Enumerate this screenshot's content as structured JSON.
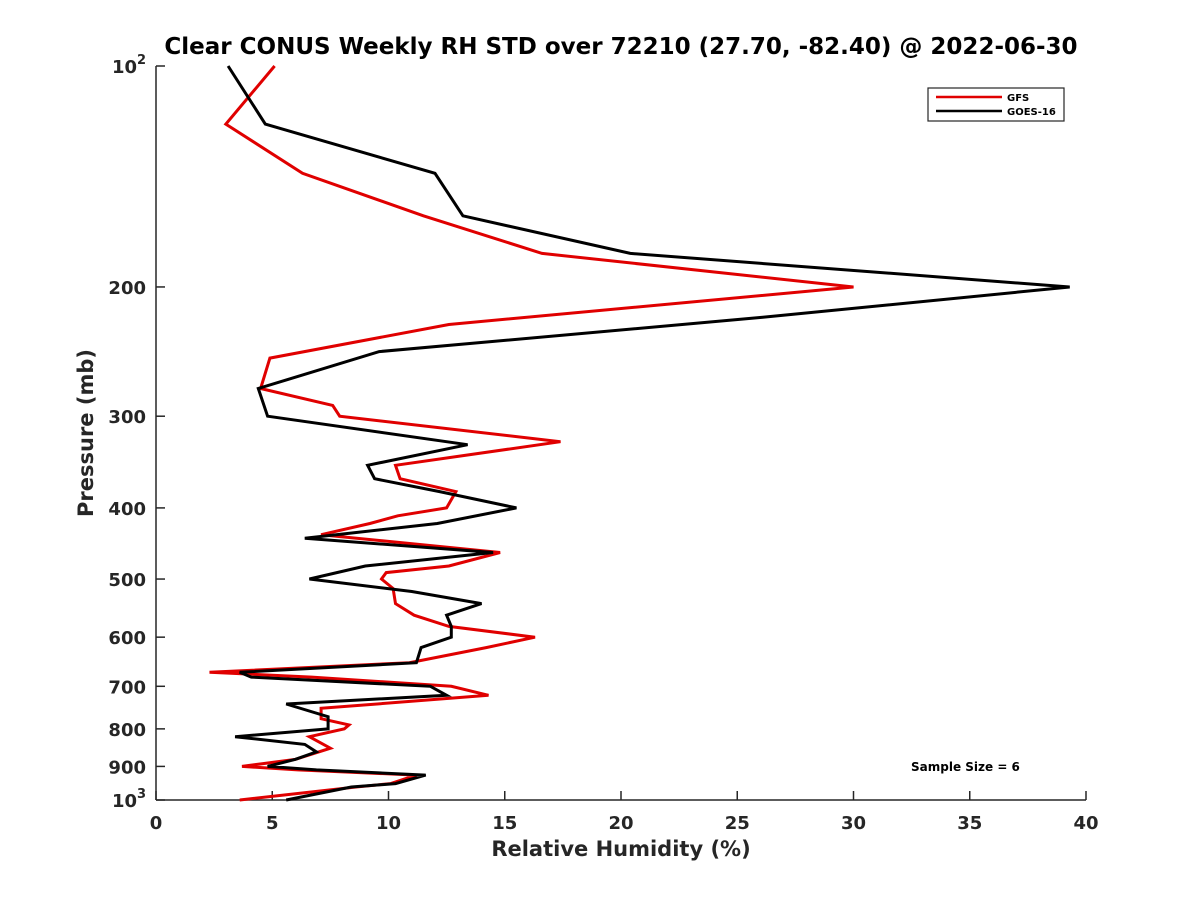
{
  "chart_data": {
    "type": "line",
    "title": "Clear CONUS Weekly RH STD over 72210 (27.70, -82.40) @ 2022-06-30",
    "xlabel": "Relative Humidity (%)",
    "ylabel": "Pressure (mb)",
    "xlim": [
      0,
      40
    ],
    "ylim": [
      100,
      1000
    ],
    "y_scale": "log",
    "y_reversed": true,
    "grid": false,
    "legend_position": "top-right",
    "x_ticks": [
      "0",
      "5",
      "10",
      "15",
      "20",
      "25",
      "30",
      "35",
      "40"
    ],
    "y_ticks": [
      {
        "value": 100,
        "label": "10",
        "sup": "2"
      },
      {
        "value": 200,
        "label": "200",
        "sup": ""
      },
      {
        "value": 300,
        "label": "300",
        "sup": ""
      },
      {
        "value": 400,
        "label": "400",
        "sup": ""
      },
      {
        "value": 500,
        "label": "500",
        "sup": ""
      },
      {
        "value": 600,
        "label": "600",
        "sup": ""
      },
      {
        "value": 700,
        "label": "700",
        "sup": ""
      },
      {
        "value": 800,
        "label": "800",
        "sup": ""
      },
      {
        "value": 900,
        "label": "900",
        "sup": ""
      },
      {
        "value": 1000,
        "label": "10",
        "sup": "3"
      }
    ],
    "annotation": "Sample Size = 6",
    "series": [
      {
        "name": "GFS",
        "color": "#e00000",
        "x": [
          5.1,
          3.0,
          6.3,
          11.5,
          16.6,
          30.0,
          12.6,
          4.9,
          4.5,
          7.6,
          7.9,
          17.4,
          10.3,
          10.5,
          12.9,
          12.5,
          10.4,
          9.2,
          7.1,
          14.8,
          12.6,
          9.9,
          9.7,
          10.2,
          10.3,
          11.1,
          12.6,
          16.3,
          14.2,
          10.9,
          2.3,
          6.7,
          12.7,
          14.3,
          7.1,
          7.1,
          8.3,
          8.1,
          6.6,
          7.5,
          6.0,
          3.7,
          6.1,
          11.2,
          10.1,
          8.6,
          3.6
        ],
        "y": [
          100,
          120,
          140,
          160,
          180,
          200,
          225,
          250,
          275,
          290,
          300,
          325,
          350,
          365,
          380,
          400,
          410,
          420,
          435,
          460,
          480,
          490,
          500,
          515,
          540,
          560,
          580,
          600,
          620,
          650,
          670,
          680,
          700,
          720,
          750,
          775,
          790,
          800,
          820,
          850,
          880,
          900,
          910,
          925,
          950,
          960,
          1000
        ]
      },
      {
        "name": "GOES-16",
        "color": "#000000",
        "x": [
          3.1,
          4.7,
          12.0,
          13.2,
          20.4,
          39.3,
          26.1,
          9.6,
          4.4,
          4.8,
          13.4,
          9.1,
          9.4,
          12.2,
          15.5,
          12.1,
          6.4,
          14.5,
          9.0,
          6.6,
          11.0,
          14.0,
          12.5,
          12.7,
          12.7,
          11.4,
          11.2,
          3.6,
          4.1,
          11.8,
          12.5,
          5.6,
          7.4,
          7.4,
          3.4,
          6.4,
          6.9,
          6.0,
          4.8,
          6.9,
          11.6,
          10.3,
          8.4,
          5.6
        ],
        "y": [
          100,
          120,
          140,
          160,
          180,
          200,
          220,
          245,
          275,
          300,
          328,
          350,
          365,
          380,
          400,
          420,
          440,
          460,
          480,
          500,
          520,
          540,
          560,
          580,
          600,
          620,
          650,
          670,
          680,
          700,
          720,
          740,
          770,
          800,
          820,
          840,
          860,
          880,
          900,
          910,
          925,
          950,
          960,
          1000
        ]
      }
    ]
  }
}
